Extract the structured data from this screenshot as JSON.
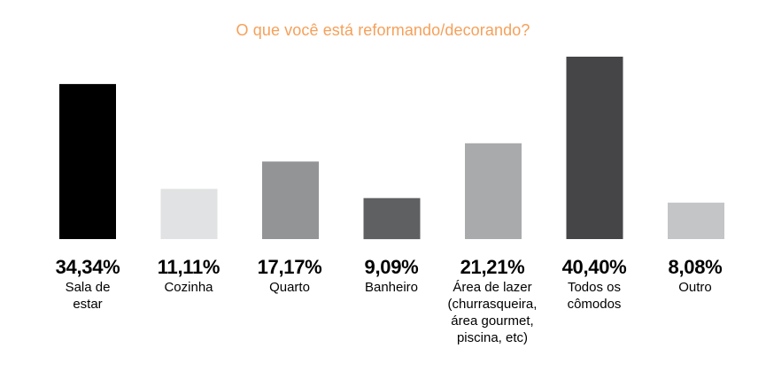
{
  "chart_data": {
    "type": "bar",
    "title": "O que você está reformando/decorando?",
    "categories": [
      "Sala de\nestar",
      "Cozinha",
      "Quarto",
      "Banheiro",
      "Área de lazer\n(churrasqueira,\nárea gourmet,\npiscina, etc)",
      "Todos os\ncômodos",
      "Outro"
    ],
    "values": [
      34.34,
      11.11,
      17.17,
      9.09,
      21.21,
      40.4,
      8.08
    ],
    "value_labels": [
      "34,34%",
      "11,11%",
      "17,17%",
      "9,09%",
      "21,21%",
      "40,40%",
      "8,08%"
    ],
    "bar_colors": [
      "#000000",
      "#e1e2e3",
      "#939496",
      "#5f6062",
      "#a9aaac",
      "#454547",
      "#c4c5c7"
    ],
    "ylim": [
      0,
      40.4
    ],
    "grid": false,
    "legend": "none",
    "title_color": "#f5a05a"
  }
}
